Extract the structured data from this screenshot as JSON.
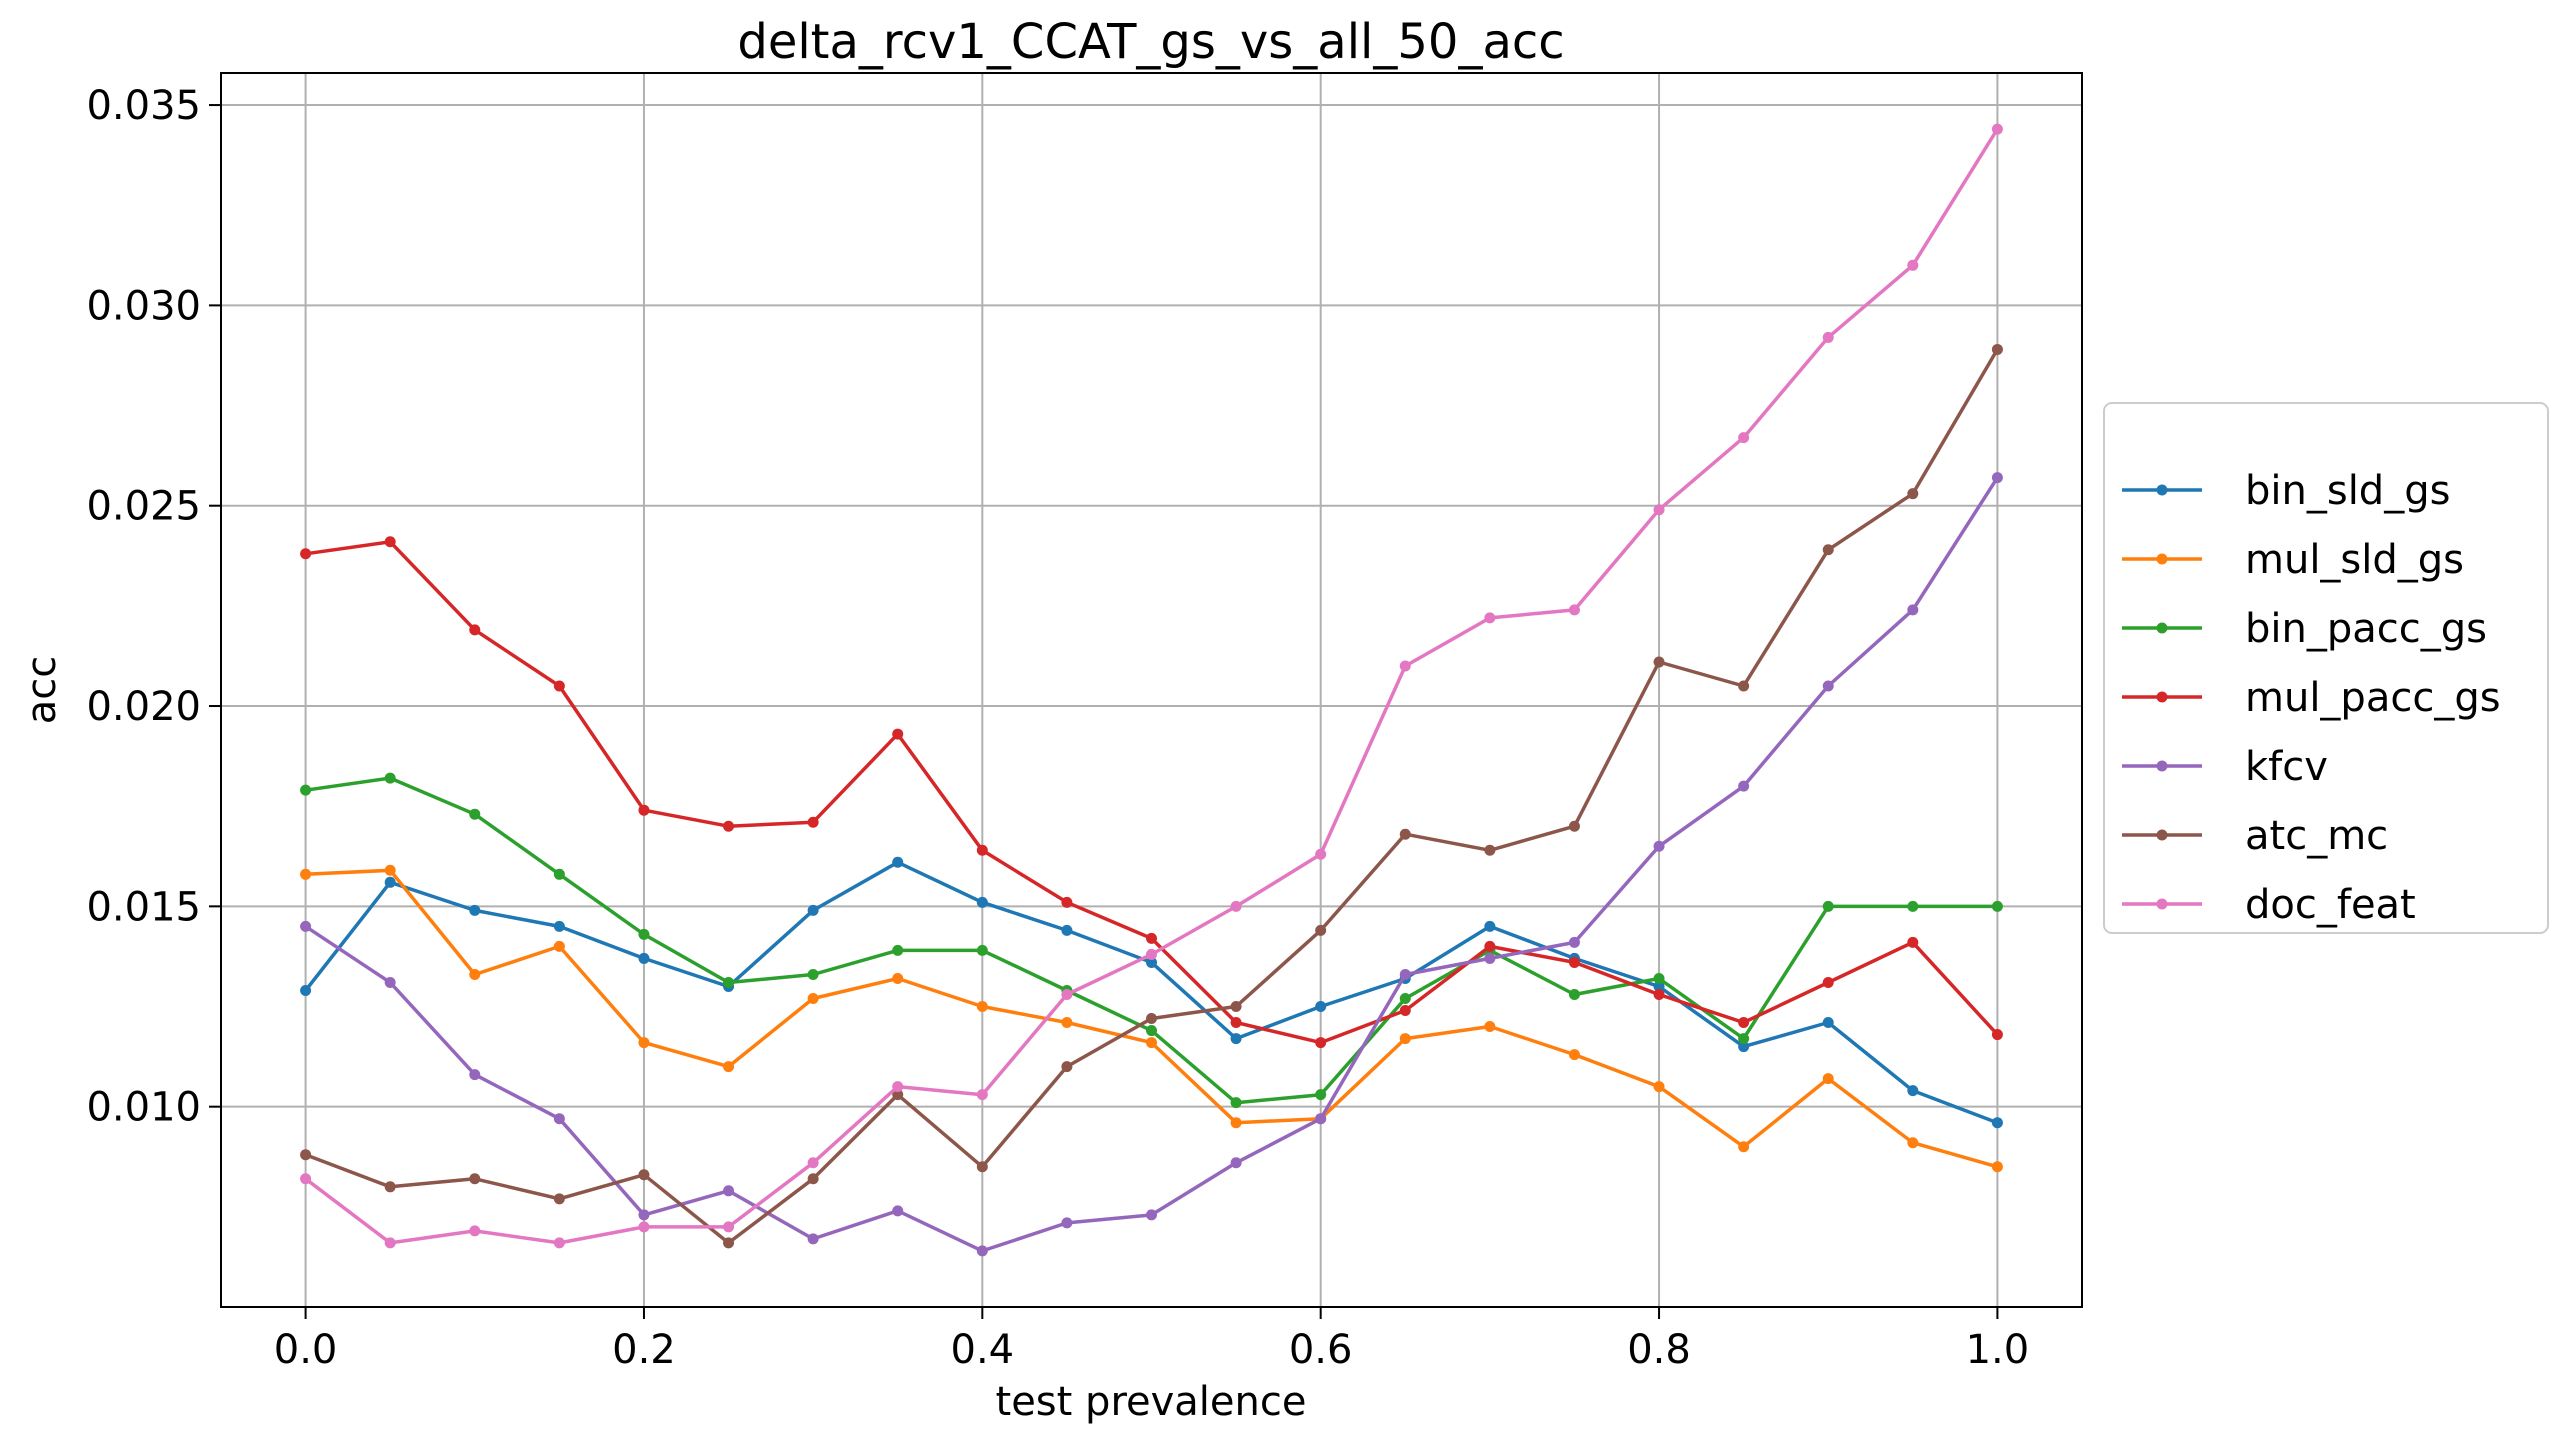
{
  "chart_data": {
    "type": "line",
    "title": "delta_rcv1_CCAT_gs_vs_all_50_acc",
    "xlabel": "test prevalence",
    "ylabel": "acc",
    "xlim": [
      -0.05,
      1.05
    ],
    "ylim": [
      0.005,
      0.0358
    ],
    "grid": true,
    "legend_position": "right",
    "x": [
      0.0,
      0.05,
      0.1,
      0.15,
      0.2,
      0.25,
      0.3,
      0.35,
      0.4,
      0.45,
      0.5,
      0.55,
      0.6,
      0.65,
      0.7,
      0.75,
      0.8,
      0.85,
      0.9,
      0.95,
      1.0
    ],
    "x_ticks": [
      {
        "value": 0.0,
        "label": "0.0"
      },
      {
        "value": 0.2,
        "label": "0.2"
      },
      {
        "value": 0.4,
        "label": "0.4"
      },
      {
        "value": 0.6,
        "label": "0.6"
      },
      {
        "value": 0.8,
        "label": "0.8"
      },
      {
        "value": 1.0,
        "label": "1.0"
      }
    ],
    "y_ticks": [
      {
        "value": 0.01,
        "label": "0.010"
      },
      {
        "value": 0.015,
        "label": "0.015"
      },
      {
        "value": 0.02,
        "label": "0.020"
      },
      {
        "value": 0.025,
        "label": "0.025"
      },
      {
        "value": 0.03,
        "label": "0.030"
      },
      {
        "value": 0.035,
        "label": "0.035"
      }
    ],
    "series": [
      {
        "name": "bin_sld_gs",
        "color": "#1f77b4",
        "values": [
          0.0129,
          0.0156,
          0.0149,
          0.0145,
          0.0137,
          0.013,
          0.0149,
          0.0161,
          0.0151,
          0.0144,
          0.0136,
          0.0117,
          0.0125,
          0.0132,
          0.0145,
          0.0137,
          0.013,
          0.0115,
          0.0121,
          0.0104,
          0.0096
        ]
      },
      {
        "name": "mul_sld_gs",
        "color": "#ff7f0e",
        "values": [
          0.0158,
          0.0159,
          0.0133,
          0.014,
          0.0116,
          0.011,
          0.0127,
          0.0132,
          0.0125,
          0.0121,
          0.0116,
          0.0096,
          0.0097,
          0.0117,
          0.012,
          0.0113,
          0.0105,
          0.009,
          0.0107,
          0.0091,
          0.0085
        ]
      },
      {
        "name": "bin_pacc_gs",
        "color": "#2ca02c",
        "values": [
          0.0179,
          0.0182,
          0.0173,
          0.0158,
          0.0143,
          0.0131,
          0.0133,
          0.0139,
          0.0139,
          0.0129,
          0.0119,
          0.0101,
          0.0103,
          0.0127,
          0.0139,
          0.0128,
          0.0132,
          0.0117,
          0.015,
          0.015,
          0.015
        ]
      },
      {
        "name": "mul_pacc_gs",
        "color": "#d62728",
        "values": [
          0.0238,
          0.0241,
          0.0219,
          0.0205,
          0.0174,
          0.017,
          0.0171,
          0.0193,
          0.0164,
          0.0151,
          0.0142,
          0.0121,
          0.0116,
          0.0124,
          0.014,
          0.0136,
          0.0128,
          0.0121,
          0.0131,
          0.0141,
          0.0118
        ]
      },
      {
        "name": "kfcv",
        "color": "#9467bd",
        "values": [
          0.0145,
          0.0131,
          0.0108,
          0.0097,
          0.0073,
          0.0079,
          0.0067,
          0.0074,
          0.0064,
          0.0071,
          0.0073,
          0.0086,
          0.0097,
          0.0133,
          0.0137,
          0.0141,
          0.0165,
          0.018,
          0.0205,
          0.0224,
          0.0257
        ]
      },
      {
        "name": "atc_mc",
        "color": "#8c564b",
        "values": [
          0.0088,
          0.008,
          0.0082,
          0.0077,
          0.0083,
          0.0066,
          0.0082,
          0.0103,
          0.0085,
          0.011,
          0.0122,
          0.0125,
          0.0144,
          0.0168,
          0.0164,
          0.017,
          0.0211,
          0.0205,
          0.0239,
          0.0253,
          0.0289
        ]
      },
      {
        "name": "doc_feat",
        "color": "#e377c2",
        "values": [
          0.0082,
          0.0066,
          0.0069,
          0.0066,
          0.007,
          0.007,
          0.0086,
          0.0105,
          0.0103,
          0.0128,
          0.0138,
          0.015,
          0.0163,
          0.021,
          0.0222,
          0.0224,
          0.0249,
          0.0267,
          0.0292,
          0.031,
          0.0344
        ]
      }
    ]
  }
}
